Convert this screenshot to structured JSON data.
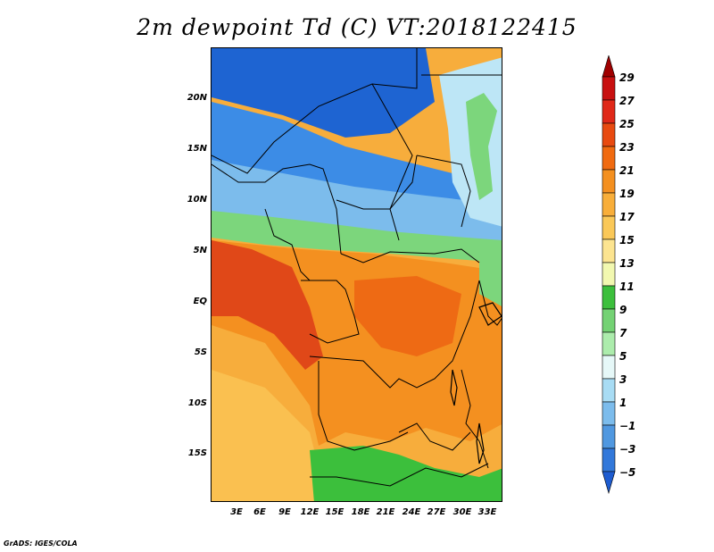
{
  "title": "2m dewpoint Td (C) VT:2018122415",
  "credit": "GrADS: IGES/COLA",
  "y_axis_labels": [
    "20N",
    "15N",
    "10N",
    "5N",
    "EQ",
    "5S",
    "10S",
    "15S"
  ],
  "x_axis_labels": [
    "3E",
    "6E",
    "9E",
    "12E",
    "15E",
    "18E",
    "21E",
    "24E",
    "27E",
    "30E",
    "33E"
  ],
  "colorbar": {
    "labels": [
      "29",
      "27",
      "25",
      "23",
      "21",
      "19",
      "17",
      "15",
      "13",
      "11",
      "9",
      "7",
      "5",
      "3",
      "1",
      "−1",
      "−3",
      "−5"
    ],
    "colors": [
      "#a00000",
      "#c81010",
      "#e02818",
      "#e84a10",
      "#f06a10",
      "#f49020",
      "#f8ae3a",
      "#fac858",
      "#fce490",
      "#f2f8b0",
      "#3cbf3c",
      "#74d274",
      "#acecac",
      "#e6f8f8",
      "#a8dcf4",
      "#7cbcec",
      "#5098e0",
      "#3278da",
      "#1e5cd0"
    ]
  },
  "map_colors": {
    "deep_blue": "#1e64d2",
    "blue": "#3c8ce6",
    "light_blue": "#7cbcec",
    "cyan": "#bde6f6",
    "green": "#3cbf3c",
    "light_green": "#7cd67c",
    "red": "#e04818",
    "dark_orange": "#ee6a14",
    "orange": "#f49020",
    "light_orange": "#f7ad3c",
    "yellow_orange": "#fac050"
  }
}
